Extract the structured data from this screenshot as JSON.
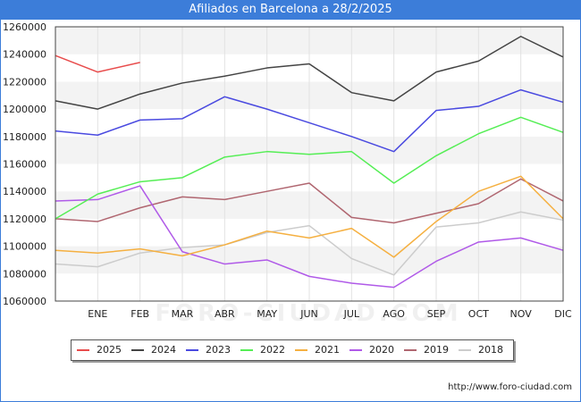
{
  "title": "Afiliados en Barcelona a 28/2/2025",
  "watermark": "FORO-CIUDAD.COM",
  "source_url": "http://www.foro-ciudad.com",
  "chart_data": {
    "type": "line",
    "title": "Afiliados en Barcelona a 28/2/2025",
    "xlabel": "",
    "ylabel": "",
    "x_tick_labels": [
      "ENE",
      "FEB",
      "MAR",
      "ABR",
      "MAY",
      "JUN",
      "JUL",
      "AGO",
      "SEP",
      "OCT",
      "NOV",
      "DIC"
    ],
    "y_tick_labels": [
      "1060000",
      "1080000",
      "1100000",
      "1120000",
      "1140000",
      "1160000",
      "1180000",
      "1200000",
      "1220000",
      "1240000",
      "1260000"
    ],
    "y_ticks": [
      1060000,
      1080000,
      1100000,
      1120000,
      1140000,
      1160000,
      1180000,
      1200000,
      1220000,
      1240000,
      1260000
    ],
    "ylim": [
      1060000,
      1260000
    ],
    "grid": "horizontal bands",
    "legend_position": "bottom",
    "series": [
      {
        "name": "2025",
        "color": "#e84c4c",
        "values": [
          1239000,
          1227000,
          1234000
        ]
      },
      {
        "name": "2024",
        "color": "#444444",
        "values": [
          1206000,
          1200000,
          1211000,
          1219000,
          1224000,
          1230000,
          1233000,
          1212000,
          1206000,
          1227000,
          1235000,
          1253000,
          1238000
        ]
      },
      {
        "name": "2023",
        "color": "#4a4ae0",
        "values": [
          1184000,
          1181000,
          1192000,
          1193000,
          1209000,
          1200000,
          1190000,
          1180000,
          1169000,
          1199000,
          1202000,
          1214000,
          1205000
        ]
      },
      {
        "name": "2022",
        "color": "#55ee55",
        "values": [
          1120000,
          1138000,
          1147000,
          1150000,
          1165000,
          1169000,
          1167000,
          1169000,
          1146000,
          1166000,
          1182000,
          1194000,
          1183000
        ]
      },
      {
        "name": "2021",
        "color": "#f5b041",
        "values": [
          1097000,
          1095000,
          1098000,
          1093000,
          1101000,
          1111000,
          1106000,
          1113000,
          1092000,
          1118000,
          1140000,
          1151000,
          1120000
        ]
      },
      {
        "name": "2020",
        "color": "#b05ae8",
        "values": [
          1133000,
          1134000,
          1144000,
          1096000,
          1087000,
          1090000,
          1078000,
          1073000,
          1070000,
          1089000,
          1103000,
          1106000,
          1097000
        ]
      },
      {
        "name": "2019",
        "color": "#b06670",
        "values": [
          1120000,
          1118000,
          1128000,
          1136000,
          1134000,
          1140000,
          1146000,
          1121000,
          1117000,
          1124000,
          1131000,
          1149000,
          1133000
        ]
      },
      {
        "name": "2018",
        "color": "#cccccc",
        "values": [
          1087000,
          1085000,
          1095000,
          1099000,
          1101000,
          1110000,
          1115000,
          1091000,
          1079000,
          1114000,
          1117000,
          1125000,
          1119000
        ]
      }
    ]
  }
}
